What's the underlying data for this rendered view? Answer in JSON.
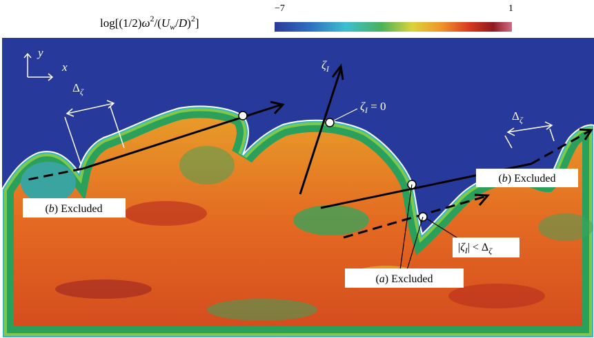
{
  "colorbar": {
    "label_parts": [
      "log[(1/2)",
      "ω",
      "2",
      "/(",
      "U",
      "w",
      "/",
      "D",
      ")",
      "2",
      "]"
    ],
    "min": "−7",
    "max": "1"
  },
  "axes": {
    "y": "y",
    "x": "x"
  },
  "annotations": {
    "delta_left": [
      "Δ",
      "ζ"
    ],
    "delta_right": [
      "Δ",
      "ζ"
    ],
    "zeta_axis": [
      "ζ",
      "I"
    ],
    "zeta_zero": [
      "ζ",
      "I",
      " = 0"
    ],
    "excluded_b_left": [
      "(",
      "b",
      ") Excluded"
    ],
    "excluded_b_right": [
      "(",
      "b",
      ") Excluded"
    ],
    "excluded_a": [
      "(",
      "a",
      ") Excluded"
    ],
    "condition": [
      "|",
      "ζ",
      "I",
      "| < Δ",
      "ζ"
    ]
  }
}
